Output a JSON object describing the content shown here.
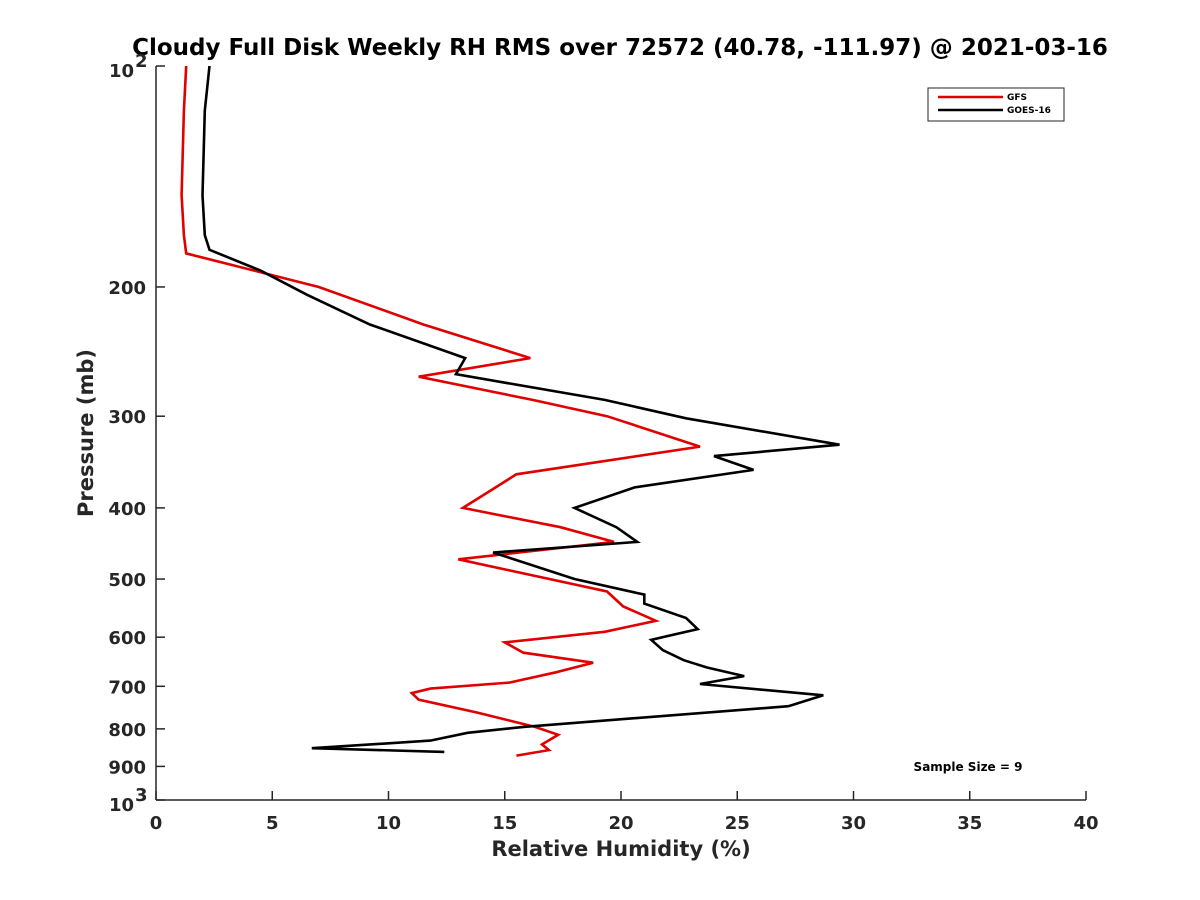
{
  "chart_data": {
    "type": "line",
    "title": "Cloudy Full Disk Weekly RH RMS over 72572 (40.78, -111.97) @ 2021-03-16",
    "xlabel": "Relative Humidity (%)",
    "ylabel": "Pressure (mb)",
    "xlim": [
      0,
      40
    ],
    "ylim": [
      100,
      1000
    ],
    "yscale": "log",
    "y_reversed": true,
    "x_ticks": [
      "0",
      "5",
      "10",
      "15",
      "20",
      "25",
      "30",
      "35",
      "40"
    ],
    "y_ticks": [
      {
        "value": 100,
        "base": "10",
        "exp": "2"
      },
      {
        "value": 200,
        "label": "200"
      },
      {
        "value": 300,
        "label": "300"
      },
      {
        "value": 400,
        "label": "400"
      },
      {
        "value": 500,
        "label": "500"
      },
      {
        "value": 600,
        "label": "600"
      },
      {
        "value": 700,
        "label": "700"
      },
      {
        "value": 800,
        "label": "800"
      },
      {
        "value": 900,
        "label": "900"
      },
      {
        "value": 1000,
        "base": "10",
        "exp": "3"
      }
    ],
    "legend_position": "top-right",
    "annotation": "Sample Size = 9",
    "series": [
      {
        "name": "GFS",
        "color": "#e00000",
        "points": [
          [
            1.3,
            100
          ],
          [
            1.2,
            115
          ],
          [
            1.1,
            150
          ],
          [
            1.2,
            170
          ],
          [
            1.3,
            180
          ],
          [
            7.0,
            200
          ],
          [
            11.5,
            225
          ],
          [
            16.1,
            250
          ],
          [
            11.3,
            265
          ],
          [
            16.2,
            285
          ],
          [
            19.4,
            300
          ],
          [
            23.4,
            330
          ],
          [
            15.5,
            360
          ],
          [
            14.5,
            377
          ],
          [
            13.2,
            400
          ],
          [
            17.4,
            425
          ],
          [
            19.7,
            445
          ],
          [
            13.0,
            470
          ],
          [
            19.4,
            520
          ],
          [
            20.1,
            545
          ],
          [
            21.5,
            570
          ],
          [
            19.3,
            590
          ],
          [
            15.0,
            610
          ],
          [
            15.8,
            630
          ],
          [
            18.8,
            650
          ],
          [
            17.2,
            670
          ],
          [
            15.2,
            692
          ],
          [
            11.8,
            705
          ],
          [
            11.0,
            715
          ],
          [
            11.3,
            730
          ],
          [
            13.8,
            760
          ],
          [
            16.3,
            795
          ],
          [
            17.3,
            815
          ],
          [
            16.6,
            840
          ],
          [
            16.9,
            855
          ],
          [
            15.5,
            870
          ]
        ]
      },
      {
        "name": "GOES-16",
        "color": "#000000",
        "points": [
          [
            2.3,
            100
          ],
          [
            2.1,
            115
          ],
          [
            2.0,
            150
          ],
          [
            2.1,
            170
          ],
          [
            2.3,
            178
          ],
          [
            4.5,
            190
          ],
          [
            6.5,
            205
          ],
          [
            9.2,
            225
          ],
          [
            13.3,
            250
          ],
          [
            12.9,
            263
          ],
          [
            19.3,
            285
          ],
          [
            22.8,
            302
          ],
          [
            29.4,
            328
          ],
          [
            24.0,
            340
          ],
          [
            25.7,
            355
          ],
          [
            20.6,
            375
          ],
          [
            18.0,
            400
          ],
          [
            19.8,
            425
          ],
          [
            20.7,
            445
          ],
          [
            14.5,
            460
          ],
          [
            18.0,
            500
          ],
          [
            21.0,
            525
          ],
          [
            21.0,
            540
          ],
          [
            22.8,
            565
          ],
          [
            23.3,
            585
          ],
          [
            21.3,
            605
          ],
          [
            21.8,
            625
          ],
          [
            22.7,
            645
          ],
          [
            23.7,
            660
          ],
          [
            25.3,
            678
          ],
          [
            23.4,
            695
          ],
          [
            28.7,
            720
          ],
          [
            27.2,
            745
          ],
          [
            15.8,
            795
          ],
          [
            13.4,
            810
          ],
          [
            11.8,
            830
          ],
          [
            6.7,
            850
          ],
          [
            12.4,
            860
          ]
        ]
      }
    ]
  }
}
